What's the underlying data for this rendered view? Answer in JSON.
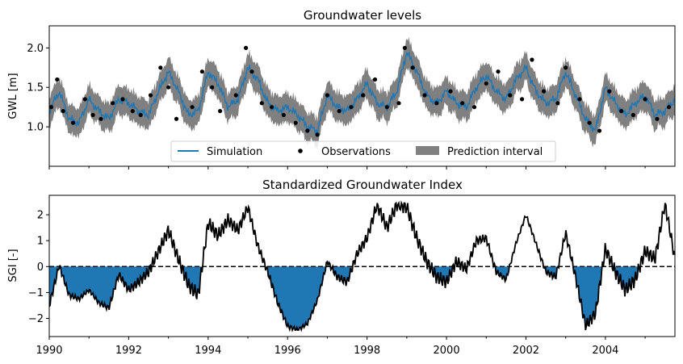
{
  "chart_data": [
    {
      "type": "line",
      "title": "Groundwater levels",
      "xlabel": "",
      "ylabel": "GWL [m]",
      "ylim": [
        0.5,
        2.28
      ],
      "xlim": [
        1990,
        2005.75
      ],
      "yticks": [
        1.0,
        1.5,
        2.0
      ],
      "yticklabels": [
        "1.0",
        "1.5",
        "2.0"
      ],
      "legend": {
        "placement": "lower-center",
        "entries": [
          "Simulation",
          "Observations",
          "Prediction interval"
        ]
      },
      "colors": {
        "simulation": "#1f77b4",
        "observations": "#000000",
        "interval": "#808080"
      },
      "interval_halfwidth": 0.15,
      "series": [
        {
          "name": "Simulation",
          "x": [
            1990.0,
            1990.25,
            1990.5,
            1990.75,
            1991.0,
            1991.25,
            1991.5,
            1991.75,
            1992.0,
            1992.25,
            1992.5,
            1992.75,
            1993.0,
            1993.25,
            1993.5,
            1993.75,
            1994.0,
            1994.25,
            1994.5,
            1994.75,
            1995.0,
            1995.25,
            1995.5,
            1995.75,
            1996.0,
            1996.25,
            1996.5,
            1996.75,
            1997.0,
            1997.25,
            1997.5,
            1997.75,
            1998.0,
            1998.25,
            1998.5,
            1998.75,
            1999.0,
            1999.25,
            1999.5,
            1999.75,
            2000.0,
            2000.25,
            2000.5,
            2000.75,
            2001.0,
            2001.25,
            2001.5,
            2001.75,
            2002.0,
            2002.25,
            2002.5,
            2002.75,
            2003.0,
            2003.25,
            2003.5,
            2003.75,
            2004.0,
            2004.25,
            2004.5,
            2004.75,
            2005.0,
            2005.25,
            2005.5,
            2005.75
          ],
          "values": [
            1.2,
            1.45,
            1.1,
            1.05,
            1.35,
            1.2,
            1.1,
            1.35,
            1.3,
            1.2,
            1.15,
            1.45,
            1.7,
            1.45,
            1.15,
            1.2,
            1.7,
            1.55,
            1.25,
            1.35,
            1.75,
            1.6,
            1.3,
            1.2,
            1.25,
            1.15,
            1.0,
            0.95,
            1.4,
            1.25,
            1.2,
            1.35,
            1.55,
            1.3,
            1.25,
            1.45,
            1.95,
            1.7,
            1.4,
            1.3,
            1.45,
            1.3,
            1.25,
            1.5,
            1.65,
            1.45,
            1.35,
            1.6,
            1.75,
            1.45,
            1.3,
            1.35,
            1.7,
            1.4,
            1.1,
            0.95,
            1.5,
            1.3,
            1.15,
            1.3,
            1.4,
            1.15,
            1.2,
            1.35
          ]
        },
        {
          "name": "Observations",
          "x": [
            1990.05,
            1990.2,
            1990.35,
            1990.6,
            1990.9,
            1991.1,
            1991.3,
            1991.6,
            1991.85,
            1992.1,
            1992.3,
            1992.55,
            1992.8,
            1993.0,
            1993.2,
            1993.6,
            1993.85,
            1994.1,
            1994.3,
            1994.7,
            1994.95,
            1995.1,
            1995.35,
            1995.6,
            1995.9,
            1996.2,
            1996.5,
            1996.75,
            1997.0,
            1997.3,
            1997.6,
            1997.9,
            1998.2,
            1998.5,
            1998.8,
            1998.95,
            1999.15,
            1999.45,
            1999.75,
            2000.1,
            2000.4,
            2000.7,
            2001.0,
            2001.3,
            2001.6,
            2001.9,
            2002.15,
            2002.45,
            2002.8,
            2003.0,
            2003.35,
            2003.6,
            2003.85,
            2004.1,
            2004.4,
            2004.7,
            2005.0,
            2005.3,
            2005.6
          ],
          "values": [
            1.25,
            1.6,
            1.2,
            1.05,
            1.35,
            1.15,
            1.1,
            1.3,
            1.35,
            1.2,
            1.15,
            1.4,
            1.75,
            1.5,
            1.1,
            1.25,
            1.7,
            1.5,
            1.2,
            1.4,
            2.0,
            1.7,
            1.3,
            1.25,
            1.15,
            1.05,
            0.95,
            0.9,
            1.4,
            1.2,
            1.25,
            1.4,
            1.6,
            1.25,
            1.3,
            2.0,
            1.75,
            1.4,
            1.3,
            1.45,
            1.3,
            1.25,
            1.55,
            1.7,
            1.4,
            1.35,
            1.85,
            1.45,
            1.3,
            1.75,
            1.35,
            1.05,
            0.95,
            1.45,
            1.2,
            1.15,
            1.35,
            1.1,
            1.25
          ]
        }
      ]
    },
    {
      "type": "area",
      "title": "Standardized Groundwater Index",
      "xlabel": "",
      "ylabel": "SGI [-]",
      "ylim": [
        -2.7,
        2.75
      ],
      "xlim": [
        1990,
        2005.75
      ],
      "yticks": [
        -2,
        -1,
        0,
        1,
        2
      ],
      "yticklabels": [
        "−2",
        "−1",
        "0",
        "1",
        "2"
      ],
      "xticks": [
        1990,
        1992,
        1994,
        1996,
        1998,
        2000,
        2002,
        2004
      ],
      "xticklabels": [
        "1990",
        "1992",
        "1994",
        "1996",
        "1998",
        "2000",
        "2002",
        "2004"
      ],
      "reference_line": 0,
      "colors": {
        "line": "#000000",
        "fill_negative": "#1f77b4",
        "zero_line": "#000000"
      },
      "series": [
        {
          "name": "SGI",
          "x": [
            1990.0,
            1990.25,
            1990.5,
            1990.75,
            1991.0,
            1991.25,
            1991.5,
            1991.75,
            1992.0,
            1992.25,
            1992.5,
            1992.75,
            1993.0,
            1993.25,
            1993.5,
            1993.75,
            1994.0,
            1994.25,
            1994.5,
            1994.75,
            1995.0,
            1995.25,
            1995.5,
            1995.75,
            1996.0,
            1996.25,
            1996.5,
            1996.75,
            1997.0,
            1997.25,
            1997.5,
            1997.75,
            1998.0,
            1998.25,
            1998.5,
            1998.75,
            1999.0,
            1999.25,
            1999.5,
            1999.75,
            2000.0,
            2000.25,
            2000.5,
            2000.75,
            2001.0,
            2001.25,
            2001.5,
            2001.75,
            2002.0,
            2002.25,
            2002.5,
            2002.75,
            2003.0,
            2003.25,
            2003.5,
            2003.75,
            2004.0,
            2004.25,
            2004.5,
            2004.75,
            2005.0,
            2005.25,
            2005.5,
            2005.75
          ],
          "values": [
            -1.5,
            0.05,
            -1.1,
            -1.25,
            -0.9,
            -1.4,
            -1.6,
            -0.3,
            -0.9,
            -0.6,
            -0.2,
            0.6,
            1.4,
            0.3,
            -0.7,
            -1.1,
            1.7,
            1.2,
            1.8,
            1.4,
            2.3,
            0.8,
            -0.2,
            -1.4,
            -2.3,
            -2.45,
            -2.2,
            -1.3,
            0.2,
            -0.4,
            -0.6,
            0.5,
            1.1,
            2.4,
            1.5,
            2.4,
            2.3,
            1.1,
            0.2,
            -0.4,
            -0.6,
            0.2,
            -0.1,
            1.0,
            1.1,
            -0.2,
            -0.5,
            0.9,
            2.0,
            0.9,
            -0.2,
            -0.4,
            1.3,
            -0.4,
            -2.3,
            -1.8,
            0.7,
            -0.2,
            -0.9,
            -0.5,
            0.6,
            0.3,
            2.45,
            0.3
          ]
        }
      ]
    }
  ]
}
